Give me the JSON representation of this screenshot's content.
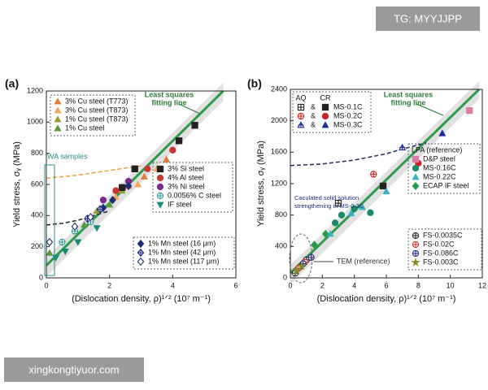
{
  "watermarks": [
    "TG: MYYJJPP",
    "xingkongtiyuor.com"
  ],
  "chart_data": [
    {
      "type": "scatter",
      "panel_label": "(a)",
      "x_label": "(Dislocation density, ρ)¹ᐟ² (10⁷ m⁻¹)",
      "y_label": "Yield stress, σᵧ (MPa)",
      "xlim": [
        0,
        6
      ],
      "xticks": [
        0,
        2,
        4,
        6
      ],
      "ylim": [
        0,
        1200
      ],
      "yticks": [
        0,
        200,
        400,
        600,
        800,
        1000,
        1200
      ],
      "annotations": [
        [
          "Least squares",
          "fitting line"
        ],
        [
          "WA samples"
        ]
      ],
      "fit_line": {
        "color": "#2e9a4a",
        "x": [
          0,
          5.6
        ],
        "y": [
          80,
          1200
        ]
      },
      "dashed_curves": [
        {
          "color": "#e8a040",
          "x": [
            0,
            1,
            2,
            3
          ],
          "y": [
            640,
            660,
            690,
            720
          ]
        },
        {
          "color": "#222222",
          "x": [
            0,
            0.5,
            1,
            1.5,
            2
          ],
          "y": [
            340,
            350,
            370,
            400,
            430
          ]
        }
      ],
      "series": [
        {
          "name": "3% Cu steel (T773)",
          "color": "#e07b39",
          "marker": "triangle",
          "legend": "upper-left",
          "x": [
            2.6,
            3.1,
            3.8
          ],
          "y": [
            590,
            650,
            760
          ]
        },
        {
          "name": "3% Cu steel (T873)",
          "color": "#f2a65a",
          "marker": "triangle",
          "legend": "upper-left",
          "x": [
            2.2,
            2.9,
            3.5
          ],
          "y": [
            520,
            600,
            700
          ]
        },
        {
          "name": "1% Cu steel (T873)",
          "color": "#9a9a3a",
          "marker": "triangle",
          "legend": "upper-left",
          "x": [
            1.6,
            2.4
          ],
          "y": [
            430,
            560
          ]
        },
        {
          "name": "1% Cu steel",
          "color": "#5a9a3a",
          "marker": "triangle",
          "legend": "upper-left",
          "x": [
            1.2,
            2.0,
            0.1
          ],
          "y": [
            340,
            470,
            160
          ]
        },
        {
          "name": "3% Si steel",
          "color": "#222222",
          "marker": "square",
          "legend": "center-right",
          "x": [
            2.4,
            2.8,
            4.2,
            4.7
          ],
          "y": [
            580,
            700,
            880,
            980
          ]
        },
        {
          "name": "4% Al steel",
          "color": "#cc3333",
          "marker": "circle",
          "legend": "center-right",
          "x": [
            2.2,
            3.2,
            4.0
          ],
          "y": [
            560,
            700,
            820
          ]
        },
        {
          "name": "3% Ni steel",
          "color": "#7a2a8a",
          "marker": "circle",
          "legend": "center-right",
          "x": [
            1.8,
            2.6
          ],
          "y": [
            500,
            620
          ]
        },
        {
          "name": "0.0056% C steel",
          "color": "#3a9a9a",
          "marker": "circle-cross",
          "legend": "center-right",
          "x": [
            0.5,
            0.9,
            1.4
          ],
          "y": [
            230,
            300,
            360
          ]
        },
        {
          "name": "IF steel",
          "color": "#1a8a7a",
          "marker": "triangle-down",
          "legend": "center-right",
          "x": [
            0.3,
            0.6,
            1.0,
            1.6
          ],
          "y": [
            130,
            170,
            230,
            320
          ]
        },
        {
          "name": "1% Mn steel (16 μm)",
          "color": "#1f2a7a",
          "marker": "diamond",
          "legend": "lower-right",
          "x": [
            1.8,
            2.1,
            2.6
          ],
          "y": [
            450,
            500,
            590
          ]
        },
        {
          "name": "1% Mn steel (42 μm)",
          "color": "#1f2a7a",
          "marker": "diamond-cross",
          "legend": "lower-right",
          "x": [
            1.3,
            1.7
          ],
          "y": [
            380,
            440
          ]
        },
        {
          "name": "1% Mn steel (117 μm)",
          "color": "#1f2a7a",
          "marker": "diamond-open",
          "legend": "lower-right",
          "x": [
            0.9,
            1.4,
            0.1
          ],
          "y": [
            330,
            390,
            230
          ]
        }
      ]
    },
    {
      "type": "scatter",
      "panel_label": "(b)",
      "x_label": "(Dislocation density, ρ)¹ᐟ² (10⁷ m⁻¹)",
      "y_label": "Yield stress, σᵧ (MPa)",
      "xlim": [
        0,
        12
      ],
      "xticks": [
        0,
        2,
        4,
        6,
        8,
        10,
        12
      ],
      "ylim": [
        0,
        2400
      ],
      "yticks": [
        0,
        400,
        800,
        1200,
        1600,
        2000,
        2400
      ],
      "annotations": [
        [
          "Least squares",
          "fitting line"
        ],
        [
          "Caculated solid solution",
          "strengthening in MS-0.3C"
        ],
        [
          "TEM (reference)"
        ]
      ],
      "legend_header": [
        "AQ",
        "CR"
      ],
      "legend_joiner": "&",
      "legend_titles": {
        "center-right": "LPA (reference)"
      },
      "fit_line": {
        "color": "#2e9a4a",
        "x": [
          0,
          11.8
        ],
        "y": [
          60,
          2400
        ]
      },
      "dashed_curves": [
        {
          "color": "#1f2a5a",
          "x": [
            0,
            2,
            4,
            6,
            7,
            8.5
          ],
          "y": [
            1430,
            1450,
            1500,
            1580,
            1640,
            1720
          ]
        }
      ],
      "series": [
        {
          "name": "MS-0.1C",
          "color": "#222222",
          "marker": "square",
          "legend": "upper-left",
          "x": [
            5.8
          ],
          "y": [
            1170
          ],
          "aq": {
            "marker": "square-cross",
            "x": [
              3.0
            ],
            "y": [
              950
            ]
          }
        },
        {
          "name": "MS-0.2C",
          "color": "#cc2222",
          "marker": "circle",
          "legend": "upper-left",
          "x": [
            8.0
          ],
          "y": [
            1460
          ],
          "aq": {
            "marker": "circle-cross",
            "x": [
              5.2
            ],
            "y": [
              1320
            ]
          }
        },
        {
          "name": "MS-0.3C",
          "color": "#1f2aa0",
          "marker": "triangle",
          "legend": "upper-left",
          "x": [
            9.5
          ],
          "y": [
            1840
          ],
          "aq": {
            "marker": "triangle-cross",
            "x": [
              7.0
            ],
            "y": [
              1660
            ]
          }
        },
        {
          "name": "D&P steel",
          "color": "#e07aa8",
          "marker": "square",
          "legend": "center-right",
          "x": [
            11.2
          ],
          "y": [
            2130
          ]
        },
        {
          "name": "MS-0.16C",
          "color": "#1a8a6a",
          "marker": "circle",
          "legend": "center-right",
          "x": [
            2.8,
            3.2,
            4.0,
            5.0
          ],
          "y": [
            700,
            800,
            880,
            830
          ]
        },
        {
          "name": "MS-0.22C",
          "color": "#3ab0c0",
          "marker": "triangle",
          "legend": "center-right",
          "x": [
            2.5,
            3.8,
            4.5,
            6.0
          ],
          "y": [
            560,
            820,
            900,
            1100
          ]
        },
        {
          "name": "ECAP IF steel",
          "color": "#2a9a4a",
          "marker": "diamond",
          "legend": "center-right",
          "x": [
            1.5,
            2.2
          ],
          "y": [
            420,
            560
          ]
        },
        {
          "name": "FS-0.0035C",
          "color": "#222222",
          "marker": "circle-cross",
          "legend": "lower-right",
          "x": [
            0.3,
            0.6,
            1.0
          ],
          "y": [
            60,
            140,
            230
          ]
        },
        {
          "name": "FS-0.02C",
          "color": "#cc3333",
          "marker": "circle-cross",
          "legend": "lower-right",
          "x": [
            0.5,
            0.9
          ],
          "y": [
            120,
            200
          ]
        },
        {
          "name": "FS-0.086C",
          "color": "#1f2a7a",
          "marker": "circle-cross",
          "legend": "lower-right",
          "x": [
            0.8,
            1.3
          ],
          "y": [
            180,
            260
          ]
        },
        {
          "name": "FS-0.003C",
          "color": "#8a8a2a",
          "marker": "star",
          "legend": "lower-right",
          "x": [
            0.4,
            0.7
          ],
          "y": [
            90,
            150
          ]
        }
      ]
    }
  ]
}
